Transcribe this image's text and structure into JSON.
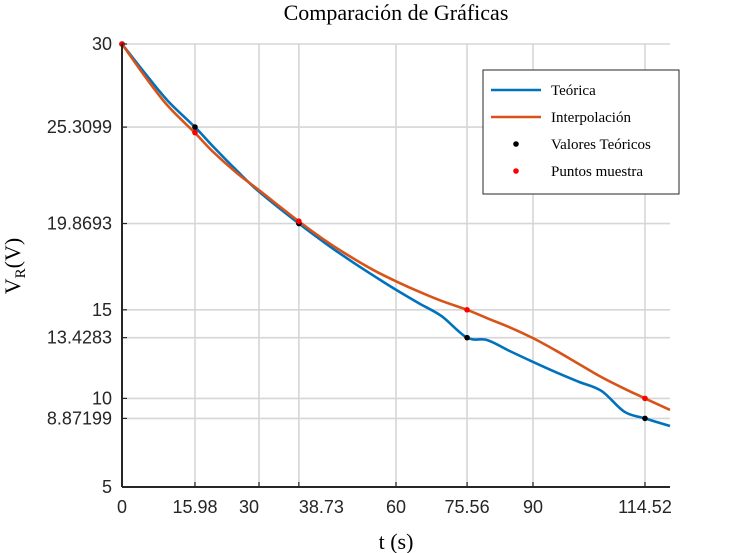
{
  "chart_data": {
    "type": "line",
    "title": "Comparación de Gráficas",
    "xlabel": "t (s)",
    "ylabel": {
      "main": "V",
      "sub": "R",
      "suffix": "(V)"
    },
    "xlim": [
      0,
      120
    ],
    "ylim": [
      5,
      30
    ],
    "x_ticks": [
      0,
      15.98,
      30,
      38.73,
      60,
      75.56,
      90,
      114.52
    ],
    "x_tick_labels": [
      "0",
      "15.98",
      "30",
      "38.73",
      "60",
      "75.56",
      "90",
      "114.52"
    ],
    "y_ticks": [
      5,
      8.87199,
      10,
      13.4283,
      15,
      19.8693,
      25.3099,
      30
    ],
    "y_tick_labels": [
      "5",
      "8.87199",
      "10",
      "13.4283",
      "15",
      "19.8693",
      "25.3099",
      "30"
    ],
    "grid": true,
    "legend_position": "top-right",
    "series": [
      {
        "name": "Teórica",
        "kind": "line",
        "color": "#0072BD",
        "x": [
          0,
          5,
          10,
          15.98,
          20,
          25,
          30,
          38.73,
          45,
          50,
          55,
          60,
          65,
          70,
          75.56,
          80,
          85,
          90,
          95,
          100,
          105,
          110,
          114.52,
          120
        ],
        "y": [
          30,
          28.36,
          26.8,
          25.31,
          24.2,
          22.89,
          21.67,
          19.87,
          18.67,
          17.78,
          16.94,
          16.13,
          15.37,
          14.64,
          13.43,
          13.29,
          12.66,
          12.06,
          11.48,
          10.94,
          10.42,
          9.25,
          8.87,
          8.44
        ]
      },
      {
        "name": "Interpolación",
        "kind": "line",
        "color": "#D95319",
        "x": [
          0,
          5,
          10,
          15.98,
          20,
          25,
          30,
          38.73,
          45,
          50,
          55,
          60,
          65,
          70,
          75.56,
          80,
          85,
          90,
          95,
          100,
          105,
          110,
          114.52,
          120
        ],
        "y": [
          30,
          28.18,
          26.52,
          24.98,
          23.9,
          22.75,
          21.75,
          19.99,
          18.82,
          18.0,
          17.25,
          16.61,
          16.03,
          15.5,
          15.0,
          14.52,
          14.0,
          13.4,
          12.7,
          11.95,
          11.2,
          10.55,
          10.0,
          9.35
        ]
      },
      {
        "name": "Valores Teóricos",
        "kind": "markers",
        "color": "#000000",
        "x": [
          0,
          15.98,
          38.73,
          75.56,
          114.52
        ],
        "y": [
          30,
          25.3099,
          19.8693,
          13.4283,
          8.87199
        ]
      },
      {
        "name": "Puntos muestra",
        "kind": "markers",
        "color": "#FF0000",
        "x": [
          0,
          15.98,
          38.73,
          75.56,
          114.52
        ],
        "y": [
          30,
          25.0,
          20.0,
          15.0,
          10.0
        ]
      }
    ]
  }
}
